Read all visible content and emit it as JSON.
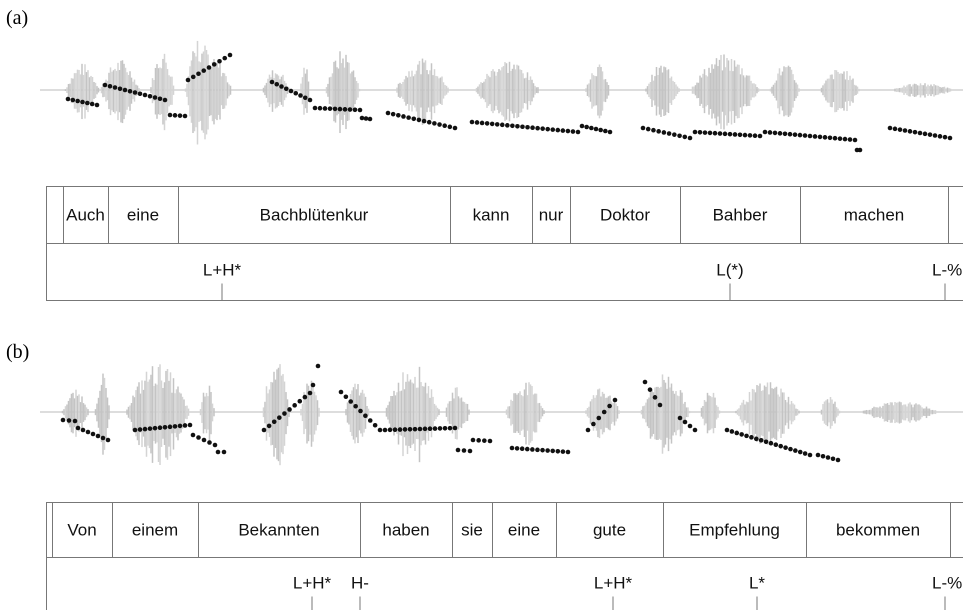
{
  "panels": [
    {
      "label": "(a)",
      "words": [
        "Auch",
        "eine",
        "Bachblütenkur",
        "kann",
        "nur",
        "Doktor",
        "Bahber",
        "machen"
      ],
      "tones": [
        "L+H*",
        "L(*)",
        "L-%"
      ]
    },
    {
      "label": "(b)",
      "words": [
        "Von",
        "einem",
        "Bekannten",
        "haben",
        "sie",
        "eine",
        "gute",
        "Empfehlung",
        "bekommen"
      ],
      "tones": [
        "L+H*",
        "H-",
        "L+H*",
        "L*",
        "L-%"
      ]
    }
  ]
}
